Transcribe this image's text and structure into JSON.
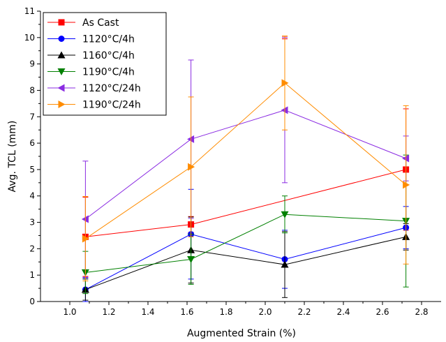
{
  "chart_data": {
    "type": "line",
    "xlabel": "Augmented Strain (%)",
    "ylabel": "Avg. TCL (mm)",
    "xlim": [
      0.85,
      2.9
    ],
    "ylim": [
      0,
      11
    ],
    "xticks": [
      "1.0",
      "1.2",
      "1.4",
      "1.6",
      "1.8",
      "2.0",
      "2.2",
      "2.4",
      "2.6",
      "2.8"
    ],
    "yticks": [
      "0",
      "1",
      "2",
      "3",
      "4",
      "5",
      "6",
      "7",
      "8",
      "9",
      "10",
      "11"
    ],
    "legend_position": "top-left",
    "grid": false,
    "x": [
      1.08,
      1.62,
      2.1,
      2.72
    ],
    "series": [
      {
        "name": "As Cast",
        "color": "#ff0000",
        "marker": "square",
        "values": [
          2.45,
          2.92,
          10.0,
          5.0
        ],
        "errors": [
          1.5,
          0.3,
          0.05,
          2.3
        ],
        "values_present": [
          true,
          true,
          false,
          true
        ]
      },
      {
        "name": "1120°C/4h",
        "color": "#0000ff",
        "marker": "circle",
        "values": [
          0.45,
          2.55,
          1.6,
          2.8
        ],
        "errors": [
          0.45,
          1.7,
          1.1,
          0.8
        ]
      },
      {
        "name": "1160°C/4h",
        "color": "#000000",
        "marker": "triangle-up",
        "values": [
          0.45,
          1.95,
          1.4,
          2.45
        ],
        "errors": [
          0.4,
          1.25,
          1.25,
          0.5
        ]
      },
      {
        "name": "1190°C/4h",
        "color": "#008000",
        "marker": "triangle-down",
        "values": [
          1.1,
          1.6,
          3.3,
          3.05
        ],
        "errors": [
          0.8,
          0.95,
          0.7,
          2.5
        ]
      },
      {
        "name": "1120°C/24h",
        "color": "#8a2be2",
        "marker": "triangle-left",
        "values": [
          3.12,
          6.15,
          7.25,
          5.42
        ],
        "errors": [
          2.2,
          3.0,
          2.75,
          0.85
        ]
      },
      {
        "name": "1190°C/24h",
        "color": "#ff8c00",
        "marker": "triangle-right",
        "values": [
          2.38,
          5.1,
          8.28,
          4.42
        ],
        "errors": [
          1.6,
          2.65,
          1.78,
          3.0
        ]
      }
    ]
  }
}
